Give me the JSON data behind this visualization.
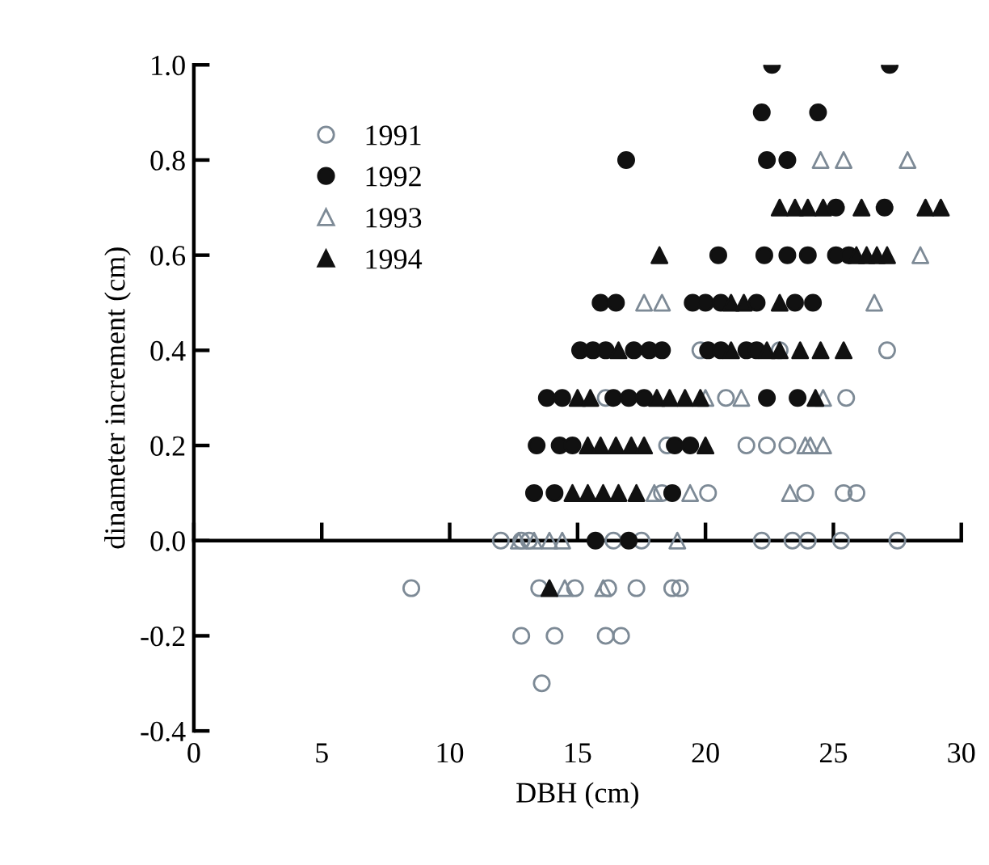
{
  "chart_data": {
    "type": "scatter",
    "xlabel": "DBH (cm)",
    "ylabel": "dinameter increment (cm)",
    "xlim": [
      0,
      30
    ],
    "xticks": [
      0,
      5,
      10,
      15,
      20,
      25,
      30
    ],
    "ylim": [
      -0.4,
      1.0
    ],
    "yticks": [
      {
        "value": -0.4,
        "label": "-0.4"
      },
      {
        "value": -0.2,
        "label": "-0.2"
      },
      {
        "value": 0,
        "label": "0.0"
      },
      {
        "value": 0.2,
        "label": "0.2"
      },
      {
        "value": 0.4,
        "label": "0.4"
      },
      {
        "value": 0.6,
        "label": "0.6"
      },
      {
        "value": 0.8,
        "label": "0.8"
      },
      {
        "value": 1.0,
        "label": "1.0"
      }
    ],
    "legend": "top left",
    "series": [
      {
        "name": "1991",
        "marker": "circle",
        "color": "#7d8a96",
        "x": [
          8.5,
          12.0,
          12.8,
          13.1,
          16.4,
          17.5,
          22.2,
          23.4,
          24.0,
          25.3,
          27.5,
          13.5,
          14.9,
          16.2,
          17.3,
          18.7,
          19.0,
          12.8,
          14.1,
          16.1,
          16.7,
          13.6,
          16.1,
          19.8,
          22.9,
          27.1,
          20.8,
          25.5,
          18.5,
          21.6,
          22.4,
          23.2,
          18.3,
          20.1,
          23.9,
          25.4,
          25.9
        ],
        "values": [
          -0.1,
          0,
          0,
          0,
          0,
          0,
          0,
          0,
          0,
          0,
          0,
          -0.1,
          -0.1,
          -0.1,
          -0.1,
          -0.1,
          -0.1,
          -0.2,
          -0.2,
          -0.2,
          -0.2,
          -0.3,
          0.3,
          0.4,
          0.4,
          0.4,
          0.3,
          0.3,
          0.2,
          0.2,
          0.2,
          0.2,
          0.1,
          0.1,
          0.1,
          0.1,
          0.1
        ]
      },
      {
        "name": "1992",
        "marker": "circle",
        "color": "#111111",
        "x": [
          22.6,
          27.2,
          22.2,
          24.4,
          16.9,
          22.4,
          23.2,
          25.1,
          27.0,
          20.5,
          22.3,
          23.2,
          24.0,
          25.1,
          25.6,
          15.9,
          16.5,
          19.5,
          20.0,
          20.6,
          22.0,
          23.5,
          24.2,
          15.1,
          15.6,
          16.1,
          17.2,
          17.8,
          18.3,
          20.1,
          20.6,
          21.6,
          22.0,
          13.8,
          14.4,
          16.4,
          17.0,
          17.6,
          22.4,
          23.6,
          13.4,
          14.3,
          14.8,
          18.8,
          19.4,
          13.3,
          14.1,
          18.7,
          15.7,
          17.0
        ],
        "values": [
          1.0,
          1.0,
          0.9,
          0.9,
          0.8,
          0.8,
          0.8,
          0.7,
          0.7,
          0.6,
          0.6,
          0.6,
          0.6,
          0.6,
          0.6,
          0.5,
          0.5,
          0.5,
          0.5,
          0.5,
          0.5,
          0.5,
          0.5,
          0.4,
          0.4,
          0.4,
          0.4,
          0.4,
          0.4,
          0.4,
          0.4,
          0.4,
          0.4,
          0.3,
          0.3,
          0.3,
          0.3,
          0.3,
          0.3,
          0.3,
          0.2,
          0.2,
          0.2,
          0.2,
          0.2,
          0.1,
          0.1,
          0.1,
          0,
          0
        ]
      },
      {
        "name": "1993",
        "marker": "triangle",
        "color": "#7d8a96",
        "x": [
          24.5,
          25.4,
          27.9,
          28.4,
          17.6,
          18.3,
          26.6,
          20.0,
          21.4,
          24.6,
          23.9,
          24.1,
          24.6,
          18.0,
          19.4,
          23.3,
          12.7,
          13.3,
          13.9,
          14.4,
          18.9,
          14.5,
          16.0
        ],
        "values": [
          0.8,
          0.8,
          0.8,
          0.6,
          0.5,
          0.5,
          0.5,
          0.3,
          0.3,
          0.3,
          0.2,
          0.2,
          0.2,
          0.1,
          0.1,
          0.1,
          0,
          0,
          0,
          0,
          0,
          -0.1,
          -0.1
        ]
      },
      {
        "name": "1994",
        "marker": "triangle",
        "color": "#111111",
        "x": [
          22.9,
          23.5,
          24.0,
          24.6,
          26.1,
          28.6,
          29.2,
          18.2,
          25.9,
          26.3,
          26.7,
          27.1,
          21.0,
          21.5,
          22.9,
          16.6,
          21.0,
          22.4,
          22.9,
          23.7,
          24.5,
          25.4,
          15.0,
          15.5,
          18.1,
          18.6,
          19.2,
          19.8,
          24.3,
          15.4,
          15.9,
          16.5,
          17.1,
          17.6,
          20.0,
          14.8,
          15.4,
          16.0,
          16.6,
          17.3,
          13.9
        ],
        "values": [
          0.7,
          0.7,
          0.7,
          0.7,
          0.7,
          0.7,
          0.7,
          0.6,
          0.6,
          0.6,
          0.6,
          0.6,
          0.5,
          0.5,
          0.5,
          0.4,
          0.4,
          0.4,
          0.4,
          0.4,
          0.4,
          0.4,
          0.3,
          0.3,
          0.3,
          0.3,
          0.3,
          0.3,
          0.3,
          0.2,
          0.2,
          0.2,
          0.2,
          0.2,
          0.2,
          0.1,
          0.1,
          0.1,
          0.1,
          0.1,
          -0.1
        ]
      }
    ]
  }
}
